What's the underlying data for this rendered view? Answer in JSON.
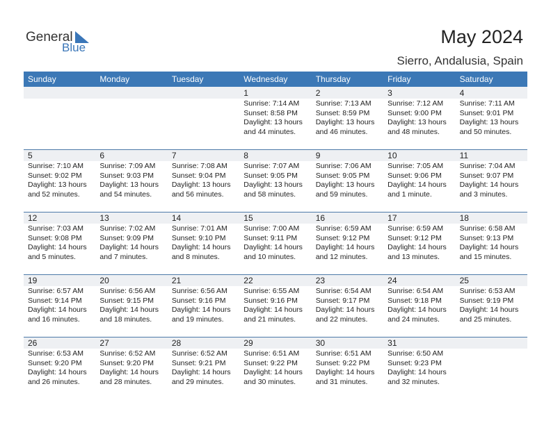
{
  "logo": {
    "part1": "General",
    "part2": "Blue"
  },
  "header": {
    "title": "May 2024",
    "location": "Sierro, Andalusia, Spain"
  },
  "weekdays": [
    "Sunday",
    "Monday",
    "Tuesday",
    "Wednesday",
    "Thursday",
    "Friday",
    "Saturday"
  ],
  "weeks": [
    [
      null,
      null,
      null,
      {
        "day": 1,
        "sunrise": "Sunrise: 7:14 AM",
        "sunset": "Sunset: 8:58 PM",
        "daylight": "Daylight: 13 hours",
        "minutes": "and 44 minutes."
      },
      {
        "day": 2,
        "sunrise": "Sunrise: 7:13 AM",
        "sunset": "Sunset: 8:59 PM",
        "daylight": "Daylight: 13 hours",
        "minutes": "and 46 minutes."
      },
      {
        "day": 3,
        "sunrise": "Sunrise: 7:12 AM",
        "sunset": "Sunset: 9:00 PM",
        "daylight": "Daylight: 13 hours",
        "minutes": "and 48 minutes."
      },
      {
        "day": 4,
        "sunrise": "Sunrise: 7:11 AM",
        "sunset": "Sunset: 9:01 PM",
        "daylight": "Daylight: 13 hours",
        "minutes": "and 50 minutes."
      }
    ],
    [
      {
        "day": 5,
        "sunrise": "Sunrise: 7:10 AM",
        "sunset": "Sunset: 9:02 PM",
        "daylight": "Daylight: 13 hours",
        "minutes": "and 52 minutes."
      },
      {
        "day": 6,
        "sunrise": "Sunrise: 7:09 AM",
        "sunset": "Sunset: 9:03 PM",
        "daylight": "Daylight: 13 hours",
        "minutes": "and 54 minutes."
      },
      {
        "day": 7,
        "sunrise": "Sunrise: 7:08 AM",
        "sunset": "Sunset: 9:04 PM",
        "daylight": "Daylight: 13 hours",
        "minutes": "and 56 minutes."
      },
      {
        "day": 8,
        "sunrise": "Sunrise: 7:07 AM",
        "sunset": "Sunset: 9:05 PM",
        "daylight": "Daylight: 13 hours",
        "minutes": "and 58 minutes."
      },
      {
        "day": 9,
        "sunrise": "Sunrise: 7:06 AM",
        "sunset": "Sunset: 9:05 PM",
        "daylight": "Daylight: 13 hours",
        "minutes": "and 59 minutes."
      },
      {
        "day": 10,
        "sunrise": "Sunrise: 7:05 AM",
        "sunset": "Sunset: 9:06 PM",
        "daylight": "Daylight: 14 hours",
        "minutes": "and 1 minute."
      },
      {
        "day": 11,
        "sunrise": "Sunrise: 7:04 AM",
        "sunset": "Sunset: 9:07 PM",
        "daylight": "Daylight: 14 hours",
        "minutes": "and 3 minutes."
      }
    ],
    [
      {
        "day": 12,
        "sunrise": "Sunrise: 7:03 AM",
        "sunset": "Sunset: 9:08 PM",
        "daylight": "Daylight: 14 hours",
        "minutes": "and 5 minutes."
      },
      {
        "day": 13,
        "sunrise": "Sunrise: 7:02 AM",
        "sunset": "Sunset: 9:09 PM",
        "daylight": "Daylight: 14 hours",
        "minutes": "and 7 minutes."
      },
      {
        "day": 14,
        "sunrise": "Sunrise: 7:01 AM",
        "sunset": "Sunset: 9:10 PM",
        "daylight": "Daylight: 14 hours",
        "minutes": "and 8 minutes."
      },
      {
        "day": 15,
        "sunrise": "Sunrise: 7:00 AM",
        "sunset": "Sunset: 9:11 PM",
        "daylight": "Daylight: 14 hours",
        "minutes": "and 10 minutes."
      },
      {
        "day": 16,
        "sunrise": "Sunrise: 6:59 AM",
        "sunset": "Sunset: 9:12 PM",
        "daylight": "Daylight: 14 hours",
        "minutes": "and 12 minutes."
      },
      {
        "day": 17,
        "sunrise": "Sunrise: 6:59 AM",
        "sunset": "Sunset: 9:12 PM",
        "daylight": "Daylight: 14 hours",
        "minutes": "and 13 minutes."
      },
      {
        "day": 18,
        "sunrise": "Sunrise: 6:58 AM",
        "sunset": "Sunset: 9:13 PM",
        "daylight": "Daylight: 14 hours",
        "minutes": "and 15 minutes."
      }
    ],
    [
      {
        "day": 19,
        "sunrise": "Sunrise: 6:57 AM",
        "sunset": "Sunset: 9:14 PM",
        "daylight": "Daylight: 14 hours",
        "minutes": "and 16 minutes."
      },
      {
        "day": 20,
        "sunrise": "Sunrise: 6:56 AM",
        "sunset": "Sunset: 9:15 PM",
        "daylight": "Daylight: 14 hours",
        "minutes": "and 18 minutes."
      },
      {
        "day": 21,
        "sunrise": "Sunrise: 6:56 AM",
        "sunset": "Sunset: 9:16 PM",
        "daylight": "Daylight: 14 hours",
        "minutes": "and 19 minutes."
      },
      {
        "day": 22,
        "sunrise": "Sunrise: 6:55 AM",
        "sunset": "Sunset: 9:16 PM",
        "daylight": "Daylight: 14 hours",
        "minutes": "and 21 minutes."
      },
      {
        "day": 23,
        "sunrise": "Sunrise: 6:54 AM",
        "sunset": "Sunset: 9:17 PM",
        "daylight": "Daylight: 14 hours",
        "minutes": "and 22 minutes."
      },
      {
        "day": 24,
        "sunrise": "Sunrise: 6:54 AM",
        "sunset": "Sunset: 9:18 PM",
        "daylight": "Daylight: 14 hours",
        "minutes": "and 24 minutes."
      },
      {
        "day": 25,
        "sunrise": "Sunrise: 6:53 AM",
        "sunset": "Sunset: 9:19 PM",
        "daylight": "Daylight: 14 hours",
        "minutes": "and 25 minutes."
      }
    ],
    [
      {
        "day": 26,
        "sunrise": "Sunrise: 6:53 AM",
        "sunset": "Sunset: 9:20 PM",
        "daylight": "Daylight: 14 hours",
        "minutes": "and 26 minutes."
      },
      {
        "day": 27,
        "sunrise": "Sunrise: 6:52 AM",
        "sunset": "Sunset: 9:20 PM",
        "daylight": "Daylight: 14 hours",
        "minutes": "and 28 minutes."
      },
      {
        "day": 28,
        "sunrise": "Sunrise: 6:52 AM",
        "sunset": "Sunset: 9:21 PM",
        "daylight": "Daylight: 14 hours",
        "minutes": "and 29 minutes."
      },
      {
        "day": 29,
        "sunrise": "Sunrise: 6:51 AM",
        "sunset": "Sunset: 9:22 PM",
        "daylight": "Daylight: 14 hours",
        "minutes": "and 30 minutes."
      },
      {
        "day": 30,
        "sunrise": "Sunrise: 6:51 AM",
        "sunset": "Sunset: 9:22 PM",
        "daylight": "Daylight: 14 hours",
        "minutes": "and 31 minutes."
      },
      {
        "day": 31,
        "sunrise": "Sunrise: 6:50 AM",
        "sunset": "Sunset: 9:23 PM",
        "daylight": "Daylight: 14 hours",
        "minutes": "and 32 minutes."
      },
      null
    ]
  ]
}
